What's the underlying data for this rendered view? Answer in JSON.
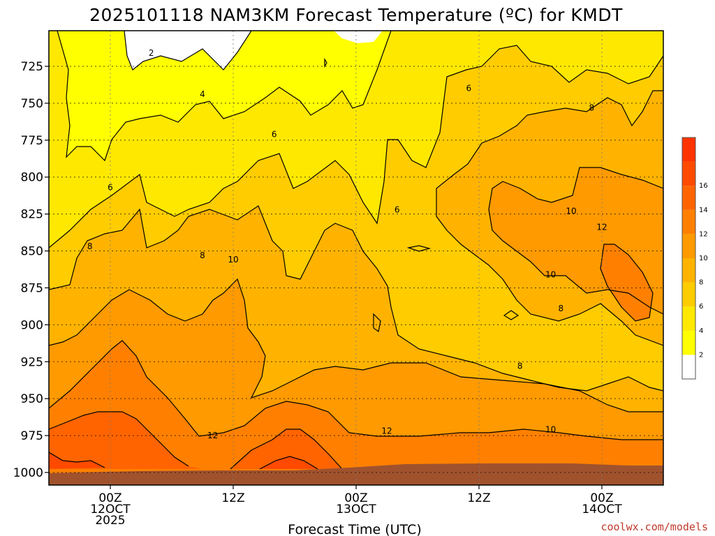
{
  "chart_data": {
    "type": "heatmap",
    "title": "2025101118 NAM3KM Forecast Temperature (ºC) for KMDT",
    "xlabel": "Forecast Time (UTC)",
    "ylabel": "",
    "credit": "coolwx.com/models",
    "y_ticks": [
      {
        "p": 725,
        "label": "725"
      },
      {
        "p": 750,
        "label": "750"
      },
      {
        "p": 775,
        "label": "775"
      },
      {
        "p": 800,
        "label": "800"
      },
      {
        "p": 825,
        "label": "825"
      },
      {
        "p": 850,
        "label": "850"
      },
      {
        "p": 875,
        "label": "875"
      },
      {
        "p": 900,
        "label": "900"
      },
      {
        "p": 925,
        "label": "925"
      },
      {
        "p": 950,
        "label": "950"
      },
      {
        "p": 975,
        "label": "975"
      },
      {
        "p": 1000,
        "label": "1000"
      }
    ],
    "x_ticks": [
      {
        "t": 6,
        "lines": [
          "00Z",
          "12OCT",
          "2025"
        ]
      },
      {
        "t": 18,
        "lines": [
          "12Z"
        ]
      },
      {
        "t": 30,
        "lines": [
          "00Z",
          "13OCT"
        ]
      },
      {
        "t": 42,
        "lines": [
          "12Z"
        ]
      },
      {
        "t": 54,
        "lines": [
          "00Z",
          "14OCT"
        ]
      }
    ],
    "x_range_hours": [
      0,
      60
    ],
    "grid": true,
    "legend": {
      "position": "right",
      "levels": [
        {
          "value": "",
          "color": "#ffffff"
        },
        {
          "value": "2",
          "color": "#ffff00"
        },
        {
          "value": "4",
          "color": "#ffe800"
        },
        {
          "value": "6",
          "color": "#ffcc00"
        },
        {
          "value": "8",
          "color": "#ffb300"
        },
        {
          "value": "10",
          "color": "#ff9a00"
        },
        {
          "value": "12",
          "color": "#ff8000"
        },
        {
          "value": "14",
          "color": "#ff6400"
        },
        {
          "value": "16",
          "color": "#ff4a00"
        },
        {
          "value": "",
          "color": "#ff3300"
        }
      ]
    },
    "contour_labels": [
      {
        "value": "2",
        "t": 10.0,
        "p": 716
      },
      {
        "value": "4",
        "t": 15.0,
        "p": 744
      },
      {
        "value": "6",
        "t": 22.0,
        "p": 771
      },
      {
        "value": "6",
        "t": 6.0,
        "p": 807
      },
      {
        "value": "6",
        "t": 34.0,
        "p": 822
      },
      {
        "value": "6",
        "t": 41.0,
        "p": 740
      },
      {
        "value": "8",
        "t": 53.0,
        "p": 753
      },
      {
        "value": "8",
        "t": 4.0,
        "p": 847
      },
      {
        "value": "8",
        "t": 15.0,
        "p": 853
      },
      {
        "value": "8",
        "t": 50.0,
        "p": 889
      },
      {
        "value": "8",
        "t": 46.0,
        "p": 928
      },
      {
        "value": "10",
        "t": 18.0,
        "p": 856
      },
      {
        "value": "10",
        "t": 51.0,
        "p": 823
      },
      {
        "value": "10",
        "t": 49.0,
        "p": 866
      },
      {
        "value": "10",
        "t": 49.0,
        "p": 971
      },
      {
        "value": "12",
        "t": 54.0,
        "p": 834
      },
      {
        "value": "12",
        "t": 16.0,
        "p": 975
      },
      {
        "value": "12",
        "t": 33.0,
        "p": 972
      }
    ]
  }
}
